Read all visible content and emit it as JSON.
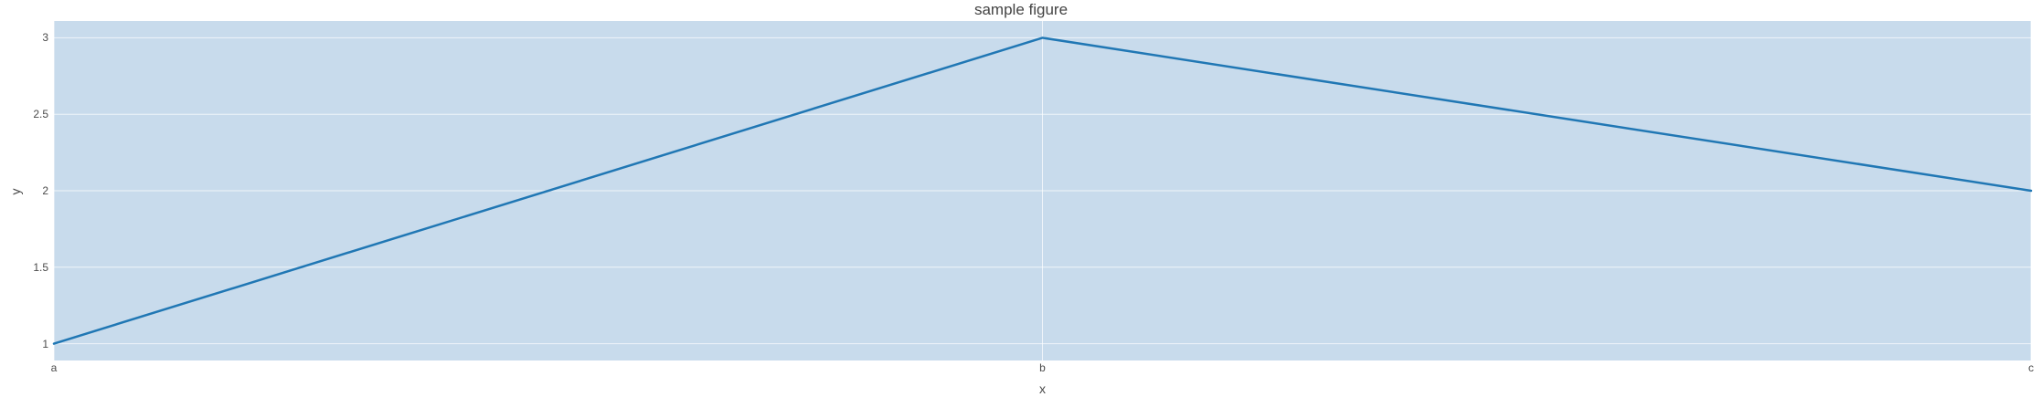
{
  "chart_data": {
    "type": "line",
    "title": "sample figure",
    "xlabel": "x",
    "ylabel": "y",
    "categories": [
      "a",
      "b",
      "c"
    ],
    "values": [
      1,
      3,
      2
    ],
    "yticks": [
      1,
      1.5,
      2,
      2.5,
      3
    ],
    "ytick_labels": [
      "1",
      "1.5",
      "2",
      "2.5",
      "3"
    ],
    "ylim": [
      0.89,
      3.11
    ],
    "grid": true,
    "legend_visible": false,
    "colors": {
      "line": "#2077b4",
      "plot_background": "#c8dbec",
      "gridline": "rgba(255,255,255,0.7)",
      "text": "#4a4a4a",
      "title_text": "#444444"
    }
  }
}
